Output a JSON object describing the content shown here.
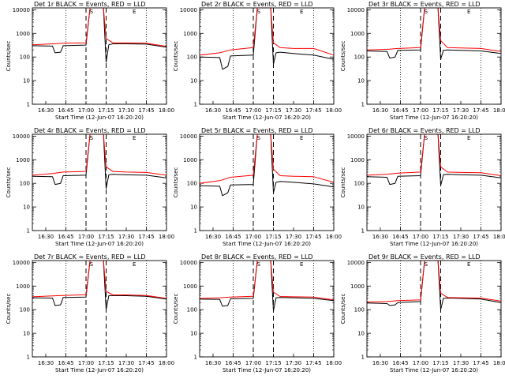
{
  "colors": {
    "events": "#000000",
    "lld": "#ff0000",
    "background": "#ffffff",
    "axis": "#000000"
  },
  "chart_data": [
    {
      "type": "line",
      "title": "Det 1r BLACK = Events, RED = LLD",
      "xlabel": "Start Time (12-Jun-07 16:20:20)",
      "ylabel": "Counts/sec",
      "y_scale": "log",
      "ylim": [
        1,
        12000
      ],
      "xlim": [
        "16:20",
        "18:00"
      ],
      "x_tick_labels": [
        "16:30",
        "16:45",
        "17:00",
        "17:15",
        "17:30",
        "17:45",
        "18:00"
      ],
      "y_tick_labels": [
        "1",
        "10",
        "100",
        "1000",
        "10000"
      ],
      "markers": [
        "S",
        "E"
      ],
      "series": [
        {
          "name": "Events",
          "color": "#000000",
          "x": [
            "16:20",
            "16:35",
            "16:37",
            "16:41",
            "16:43",
            "17:00",
            "17:03",
            "17:13",
            "17:15",
            "17:17",
            "17:20",
            "17:30",
            "17:45",
            "18:00"
          ],
          "y": [
            300,
            290,
            150,
            160,
            300,
            320,
            12000,
            12000,
            60,
            330,
            360,
            360,
            350,
            260
          ]
        },
        {
          "name": "LLD",
          "color": "#ff0000",
          "x": [
            "16:20",
            "16:35",
            "16:43",
            "17:00",
            "17:03",
            "17:13",
            "17:15",
            "17:20",
            "17:30",
            "17:45",
            "18:00"
          ],
          "y": [
            330,
            360,
            380,
            400,
            12000,
            12000,
            600,
            400,
            400,
            380,
            280
          ]
        }
      ]
    },
    {
      "type": "line",
      "title": "Det 2r BLACK = Events, RED = LLD",
      "xlabel": "Start Time (12-Jun-07 16:20:20)",
      "ylabel": "Counts/sec",
      "y_scale": "log",
      "ylim": [
        1,
        12000
      ],
      "xlim": [
        "16:20",
        "18:00"
      ],
      "x_tick_labels": [
        "16:30",
        "16:45",
        "17:00",
        "17:15",
        "17:30",
        "17:45",
        "18:00"
      ],
      "y_tick_labels": [
        "1",
        "10",
        "100",
        "1000",
        "10000"
      ],
      "markers": [
        "S",
        "E"
      ],
      "series": [
        {
          "name": "Events",
          "color": "#000000",
          "x": [
            "16:20",
            "16:35",
            "16:37",
            "16:41",
            "16:43",
            "17:00",
            "17:03",
            "17:13",
            "17:15",
            "17:17",
            "17:20",
            "17:30",
            "17:45",
            "18:00"
          ],
          "y": [
            100,
            95,
            30,
            40,
            110,
            120,
            12000,
            12000,
            50,
            150,
            160,
            140,
            120,
            80
          ]
        },
        {
          "name": "LLD",
          "color": "#ff0000",
          "x": [
            "16:20",
            "16:35",
            "16:43",
            "17:00",
            "17:03",
            "17:13",
            "17:15",
            "17:20",
            "17:30",
            "17:45",
            "18:00"
          ],
          "y": [
            120,
            150,
            200,
            250,
            12000,
            12000,
            400,
            250,
            230,
            230,
            120
          ]
        }
      ]
    },
    {
      "type": "line",
      "title": "Det 3r BLACK = Events, RED = LLD",
      "xlabel": "Start Time (12-Jun-07 16:20:20)",
      "ylabel": "Counts/sec",
      "y_scale": "log",
      "ylim": [
        1,
        12000
      ],
      "xlim": [
        "16:20",
        "18:00"
      ],
      "x_tick_labels": [
        "16:30",
        "16:45",
        "17:00",
        "17:15",
        "17:30",
        "17:45",
        "18:00"
      ],
      "y_tick_labels": [
        "1",
        "10",
        "100",
        "1000",
        "10000"
      ],
      "markers": [
        "S",
        "E"
      ],
      "series": [
        {
          "name": "Events",
          "color": "#000000",
          "x": [
            "16:20",
            "16:35",
            "16:37",
            "16:41",
            "16:43",
            "17:00",
            "17:03",
            "17:13",
            "17:15",
            "17:17",
            "17:20",
            "17:30",
            "17:45",
            "18:00"
          ],
          "y": [
            180,
            170,
            90,
            100,
            190,
            200,
            12000,
            12000,
            80,
            190,
            200,
            190,
            180,
            140
          ]
        },
        {
          "name": "LLD",
          "color": "#ff0000",
          "x": [
            "16:20",
            "16:35",
            "16:43",
            "17:00",
            "17:03",
            "17:13",
            "17:15",
            "17:20",
            "17:30",
            "17:45",
            "18:00"
          ],
          "y": [
            200,
            210,
            230,
            250,
            12000,
            12000,
            500,
            250,
            240,
            230,
            170
          ]
        }
      ]
    },
    {
      "type": "line",
      "title": "Det 4r BLACK = Events, RED = LLD",
      "xlabel": "Start Time (12-Jun-07 16:20:20)",
      "ylabel": "Counts/sec",
      "y_scale": "log",
      "ylim": [
        1,
        12000
      ],
      "xlim": [
        "16:20",
        "18:00"
      ],
      "x_tick_labels": [
        "16:30",
        "16:45",
        "17:00",
        "17:15",
        "17:30",
        "17:45",
        "18:00"
      ],
      "y_tick_labels": [
        "1",
        "10",
        "100",
        "1000",
        "10000"
      ],
      "markers": [
        "S",
        "E"
      ],
      "series": [
        {
          "name": "Events",
          "color": "#000000",
          "x": [
            "16:20",
            "16:35",
            "16:37",
            "16:41",
            "16:43",
            "17:00",
            "17:03",
            "17:13",
            "17:15",
            "17:17",
            "17:20",
            "17:30",
            "17:45",
            "18:00"
          ],
          "y": [
            200,
            190,
            90,
            100,
            210,
            220,
            12000,
            12000,
            60,
            230,
            240,
            230,
            220,
            170
          ]
        },
        {
          "name": "LLD",
          "color": "#ff0000",
          "x": [
            "16:20",
            "16:35",
            "16:43",
            "17:00",
            "17:03",
            "17:13",
            "17:15",
            "17:20",
            "17:30",
            "17:45",
            "18:00"
          ],
          "y": [
            220,
            260,
            300,
            320,
            12000,
            12000,
            500,
            320,
            300,
            290,
            220
          ]
        }
      ]
    },
    {
      "type": "line",
      "title": "Det 5r BLACK = Events, RED = LLD",
      "xlabel": "Start Time (12-Jun-07 16:20:20)",
      "ylabel": "Counts/sec",
      "y_scale": "log",
      "ylim": [
        1,
        12000
      ],
      "xlim": [
        "16:20",
        "18:00"
      ],
      "x_tick_labels": [
        "16:30",
        "16:45",
        "17:00",
        "17:15",
        "17:30",
        "17:45",
        "18:00"
      ],
      "y_tick_labels": [
        "1",
        "10",
        "100",
        "1000",
        "10000"
      ],
      "markers": [
        "S",
        "E"
      ],
      "series": [
        {
          "name": "Events",
          "color": "#000000",
          "x": [
            "16:20",
            "16:35",
            "16:37",
            "16:41",
            "16:43",
            "17:00",
            "17:03",
            "17:13",
            "17:15",
            "17:17",
            "17:20",
            "17:30",
            "17:45",
            "18:00"
          ],
          "y": [
            80,
            75,
            30,
            40,
            85,
            90,
            12000,
            12000,
            40,
            110,
            120,
            110,
            95,
            70
          ]
        },
        {
          "name": "LLD",
          "color": "#ff0000",
          "x": [
            "16:20",
            "16:35",
            "16:43",
            "17:00",
            "17:03",
            "17:13",
            "17:15",
            "17:20",
            "17:30",
            "17:45",
            "18:00"
          ],
          "y": [
            100,
            130,
            180,
            220,
            12000,
            12000,
            400,
            210,
            200,
            190,
            110
          ]
        }
      ]
    },
    {
      "type": "line",
      "title": "Det 6r BLACK = Events, RED = LLD",
      "xlabel": "Start Time (12-Jun-07 16:20:20)",
      "ylabel": "Counts/sec",
      "y_scale": "log",
      "ylim": [
        1,
        12000
      ],
      "xlim": [
        "16:20",
        "18:00"
      ],
      "x_tick_labels": [
        "16:30",
        "16:45",
        "17:00",
        "17:15",
        "17:30",
        "17:45",
        "18:00"
      ],
      "y_tick_labels": [
        "1",
        "10",
        "100",
        "1000",
        "10000"
      ],
      "markers": [
        "S",
        "E"
      ],
      "series": [
        {
          "name": "Events",
          "color": "#000000",
          "x": [
            "16:20",
            "16:35",
            "16:37",
            "16:41",
            "16:43",
            "17:00",
            "17:03",
            "17:13",
            "17:15",
            "17:17",
            "17:20",
            "17:30",
            "17:45",
            "18:00"
          ],
          "y": [
            190,
            180,
            90,
            100,
            200,
            210,
            12000,
            12000,
            80,
            230,
            240,
            230,
            220,
            170
          ]
        },
        {
          "name": "LLD",
          "color": "#ff0000",
          "x": [
            "16:20",
            "16:35",
            "16:43",
            "17:00",
            "17:03",
            "17:13",
            "17:15",
            "17:20",
            "17:30",
            "17:45",
            "18:00"
          ],
          "y": [
            220,
            240,
            270,
            300,
            12000,
            12000,
            500,
            300,
            290,
            280,
            210
          ]
        }
      ]
    },
    {
      "type": "line",
      "title": "Det 7r BLACK = Events, RED = LLD",
      "xlabel": "Start Time (12-Jun-07 16:20:20)",
      "ylabel": "Counts/sec",
      "y_scale": "log",
      "ylim": [
        1,
        12000
      ],
      "xlim": [
        "16:20",
        "18:00"
      ],
      "x_tick_labels": [
        "16:30",
        "16:45",
        "17:00",
        "17:15",
        "17:30",
        "17:45",
        "18:00"
      ],
      "y_tick_labels": [
        "1",
        "10",
        "100",
        "1000",
        "10000"
      ],
      "markers": [
        "S",
        "E"
      ],
      "series": [
        {
          "name": "Events",
          "color": "#000000",
          "x": [
            "16:20",
            "16:35",
            "16:37",
            "16:41",
            "16:43",
            "17:00",
            "17:03",
            "17:13",
            "17:15",
            "17:17",
            "17:20",
            "17:30",
            "17:45",
            "18:00"
          ],
          "y": [
            320,
            310,
            150,
            160,
            330,
            340,
            12000,
            12000,
            100,
            390,
            400,
            390,
            370,
            280
          ]
        },
        {
          "name": "LLD",
          "color": "#ff0000",
          "x": [
            "16:20",
            "16:35",
            "16:43",
            "17:00",
            "17:03",
            "17:13",
            "17:15",
            "17:20",
            "17:30",
            "17:45",
            "18:00"
          ],
          "y": [
            350,
            380,
            400,
            430,
            12000,
            12000,
            600,
            420,
            420,
            400,
            300
          ]
        }
      ]
    },
    {
      "type": "line",
      "title": "Det 8r BLACK = Events, RED = LLD",
      "xlabel": "Start Time (12-Jun-07 16:20:20)",
      "ylabel": "Counts/sec",
      "y_scale": "log",
      "ylim": [
        1,
        12000
      ],
      "xlim": [
        "16:20",
        "18:00"
      ],
      "x_tick_labels": [
        "16:30",
        "16:45",
        "17:00",
        "17:15",
        "17:30",
        "17:45",
        "18:00"
      ],
      "y_tick_labels": [
        "1",
        "10",
        "100",
        "1000",
        "10000"
      ],
      "markers": [
        "S",
        "E"
      ],
      "series": [
        {
          "name": "Events",
          "color": "#000000",
          "x": [
            "16:20",
            "16:35",
            "16:37",
            "16:41",
            "16:43",
            "17:00",
            "17:03",
            "17:13",
            "17:15",
            "17:17",
            "17:20",
            "17:30",
            "17:45",
            "18:00"
          ],
          "y": [
            280,
            270,
            140,
            150,
            290,
            300,
            12000,
            12000,
            90,
            320,
            330,
            320,
            300,
            240
          ]
        },
        {
          "name": "LLD",
          "color": "#ff0000",
          "x": [
            "16:20",
            "16:35",
            "16:43",
            "17:00",
            "17:03",
            "17:13",
            "17:15",
            "17:20",
            "17:30",
            "17:45",
            "18:00"
          ],
          "y": [
            300,
            320,
            340,
            370,
            12000,
            12000,
            550,
            360,
            350,
            340,
            260
          ]
        }
      ]
    },
    {
      "type": "line",
      "title": "Det 9r BLACK = Events, RED = LLD",
      "xlabel": "Start Time (12-Jun-07 16:20:20)",
      "ylabel": "Counts/sec",
      "y_scale": "log",
      "ylim": [
        1,
        12000
      ],
      "xlim": [
        "16:20",
        "18:00"
      ],
      "x_tick_labels": [
        "16:30",
        "16:45",
        "17:00",
        "17:15",
        "17:30",
        "17:45",
        "18:00"
      ],
      "y_tick_labels": [
        "1",
        "10",
        "100",
        "1000",
        "10000"
      ],
      "markers": [
        "S",
        "E"
      ],
      "series": [
        {
          "name": "Events",
          "color": "#000000",
          "x": [
            "16:20",
            "16:35",
            "16:37",
            "16:41",
            "16:43",
            "17:00",
            "17:03",
            "17:13",
            "17:15",
            "17:17",
            "17:20",
            "17:30",
            "17:45",
            "18:00"
          ],
          "y": [
            190,
            180,
            150,
            160,
            200,
            220,
            12000,
            12000,
            100,
            300,
            310,
            300,
            280,
            200
          ]
        },
        {
          "name": "LLD",
          "color": "#ff0000",
          "x": [
            "16:20",
            "16:35",
            "16:43",
            "17:00",
            "17:03",
            "17:13",
            "17:15",
            "17:20",
            "17:30",
            "17:45",
            "18:00"
          ],
          "y": [
            210,
            220,
            240,
            260,
            12000,
            12000,
            500,
            330,
            320,
            310,
            230
          ]
        }
      ]
    }
  ]
}
